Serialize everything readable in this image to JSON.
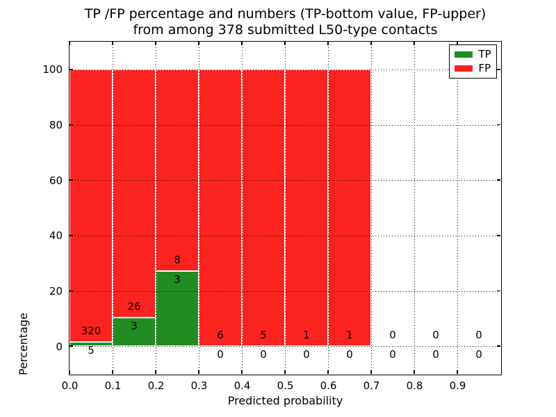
{
  "figure": {
    "title_line1": "TP /FP percentage and numbers (TP-bottom value, FP-upper)",
    "title_line2": "from among 378 submitted L50-type contacts"
  },
  "chart_data": {
    "type": "bar",
    "stacked": true,
    "normalized": "each bin scaled to 100% of (TP+FP)",
    "title": "TP /FP percentage and numbers (TP-bottom value, FP-upper) from among 378 submitted L50-type contacts",
    "xlabel": "Predicted probability",
    "ylabel": "Percentage",
    "xlim": [
      0.0,
      1.0
    ],
    "ylim": [
      -10,
      110
    ],
    "x_ticks": [
      0.0,
      0.1,
      0.2,
      0.3,
      0.4,
      0.5,
      0.6,
      0.7,
      0.8,
      0.9
    ],
    "x_tick_labels": [
      "0.0",
      "0.1",
      "0.2",
      "0.3",
      "0.4",
      "0.5",
      "0.6",
      "0.7",
      "0.8",
      "0.9"
    ],
    "y_ticks": [
      0,
      20,
      40,
      60,
      80,
      100
    ],
    "y_tick_labels": [
      "0",
      "20",
      "40",
      "60",
      "80",
      "100"
    ],
    "grid_x": [
      0.1,
      0.2,
      0.3,
      0.4,
      0.5,
      0.6,
      0.7,
      0.8,
      0.9
    ],
    "grid_on": true,
    "legend_position": "upper right",
    "series": [
      {
        "name": "TP",
        "color": "#228b22"
      },
      {
        "name": "FP",
        "color": "#fa2320"
      }
    ],
    "bar_edge_color": "#ffffff",
    "bins": [
      {
        "range": [
          0.0,
          0.1
        ],
        "tp": 5,
        "fp": 320
      },
      {
        "range": [
          0.1,
          0.2
        ],
        "tp": 3,
        "fp": 26
      },
      {
        "range": [
          0.2,
          0.3
        ],
        "tp": 3,
        "fp": 8
      },
      {
        "range": [
          0.3,
          0.4
        ],
        "tp": 0,
        "fp": 6
      },
      {
        "range": [
          0.4,
          0.5
        ],
        "tp": 0,
        "fp": 5
      },
      {
        "range": [
          0.5,
          0.6
        ],
        "tp": 0,
        "fp": 1
      },
      {
        "range": [
          0.6,
          0.7
        ],
        "tp": 0,
        "fp": 1
      },
      {
        "range": [
          0.7,
          0.8
        ],
        "tp": 0,
        "fp": 0
      },
      {
        "range": [
          0.8,
          0.9
        ],
        "tp": 0,
        "fp": 0
      },
      {
        "range": [
          0.9,
          1.0
        ],
        "tp": 0,
        "fp": 0
      }
    ]
  }
}
